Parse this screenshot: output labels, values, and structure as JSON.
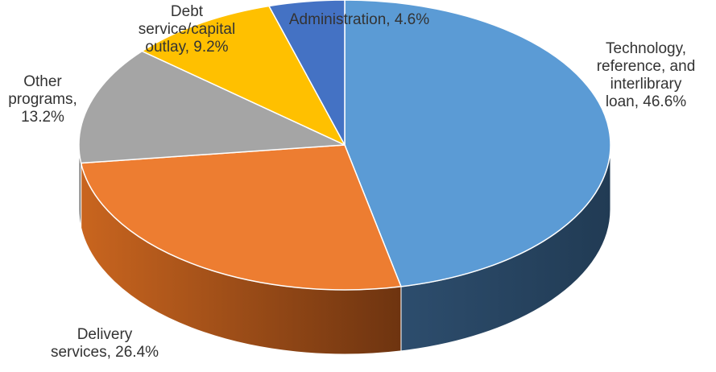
{
  "chart_data": {
    "type": "pie",
    "style": "3d",
    "title": "",
    "slices": [
      {
        "label_lines": [
          "Technology,",
          "reference, and",
          "interlibrary",
          "loan, 46.6%"
        ],
        "value": 46.6,
        "color": "#5b9bd5",
        "side_color": "#24415e"
      },
      {
        "label_lines": [
          "Delivery",
          "services, 26.4%"
        ],
        "value": 26.4,
        "color": "#ed7d31",
        "side_color": "#a8551f"
      },
      {
        "label_lines": [
          "Other",
          "programs,",
          "13.2%"
        ],
        "value": 13.2,
        "color": "#a5a5a5",
        "side_color": "#6e6e6e"
      },
      {
        "label_lines": [
          "Debt",
          "service/capital",
          "outlay, 9.2%"
        ],
        "value": 9.2,
        "color": "#ffc000",
        "side_color": "#b38600"
      },
      {
        "label_lines": [
          "Administration, 4.6%"
        ],
        "value": 4.6,
        "color": "#4472c4",
        "side_color": "#2a4a84"
      }
    ]
  }
}
